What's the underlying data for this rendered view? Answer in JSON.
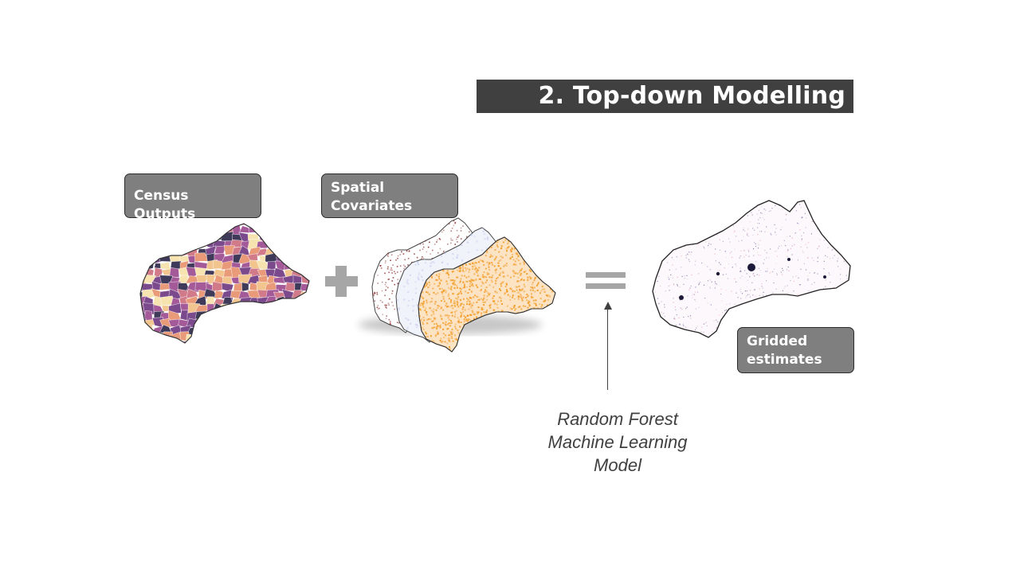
{
  "title": "2. Top-down Modelling",
  "labels": {
    "census": "Census Outputs",
    "spatial_line1": "Spatial",
    "spatial_line2": "Covariates",
    "gridded_line1": "Gridded",
    "gridded_line2": "estimates"
  },
  "model": {
    "line1": "Random Forest",
    "line2": "Machine Learning",
    "line3": "Model"
  },
  "operators": {
    "plus": "plus-icon",
    "equals": "equals-icon"
  },
  "colors": {
    "title_bg": "#404040",
    "label_bg": "#7f7f7f",
    "operator": "#a6a6a6",
    "census_palette": [
      "#3f3a5a",
      "#7b4a8c",
      "#a45a99",
      "#d07a8a",
      "#e99a78",
      "#f2c48e",
      "#f6e3b0"
    ],
    "covariate_orange": "#f39c27",
    "covariate_brown": "#8a2e2e",
    "covariate_blue": "#c9d2ee",
    "gridded_dots": "#6a5a9c"
  }
}
